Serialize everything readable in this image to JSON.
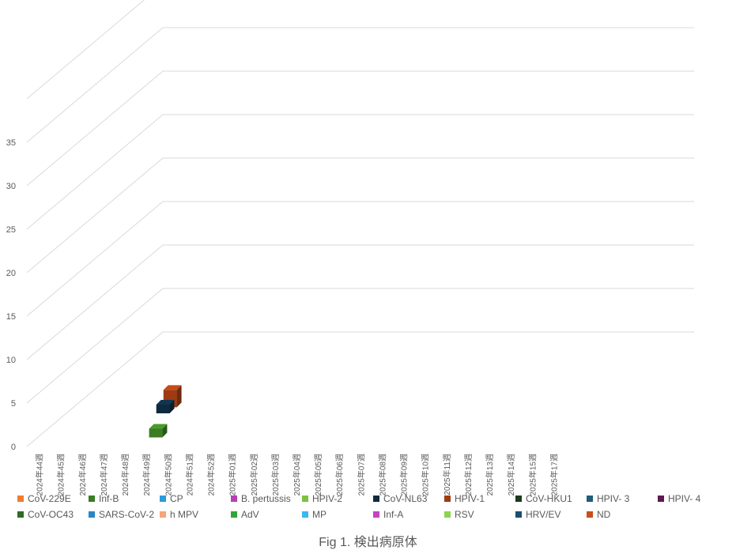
{
  "chart_data": {
    "type": "bar",
    "title": "",
    "xlabel": "",
    "ylabel": "",
    "ylim": [
      0,
      35
    ],
    "yticks": [
      0,
      5,
      10,
      15,
      20,
      25,
      30,
      35
    ],
    "categories": [
      "2024年44週",
      "2024年45週",
      "2024年46週",
      "2024年47週",
      "2024年48週",
      "2024年49週",
      "2024年50週",
      "2024年51週",
      "2024年52週",
      "2025年01週",
      "2025年02週",
      "2025年03週",
      "2025年04週",
      "2025年05週",
      "2025年06週",
      "2025年07週",
      "2025年08週",
      "2025年09週",
      "2025年10週",
      "2025年11週",
      "2025年12週",
      "2025年13週",
      "2025年14週",
      "2025年15週",
      "2025年17週"
    ],
    "series": [
      {
        "name": "CoV-229E",
        "color": "#ED7D31",
        "values": [
          0,
          0,
          0,
          0,
          0,
          0,
          0,
          0,
          0,
          0,
          0,
          0,
          0,
          0,
          0,
          0,
          0,
          0,
          0,
          0,
          0,
          0,
          0,
          0,
          0
        ]
      },
      {
        "name": "Inf-B",
        "color": "#3A7D22",
        "values": [
          0,
          0,
          0,
          0,
          0,
          1,
          0,
          0,
          0,
          0,
          0,
          0,
          0,
          0,
          0,
          0,
          0,
          0,
          0,
          0,
          0,
          0,
          0,
          0,
          0
        ]
      },
      {
        "name": "CP",
        "color": "#2E9BD6",
        "values": [
          0,
          0,
          0,
          0,
          0,
          0,
          0,
          0,
          0,
          0,
          0,
          0,
          0,
          0,
          0,
          0,
          0,
          0,
          0,
          0,
          0,
          0,
          0,
          0,
          0
        ]
      },
      {
        "name": "B. pertussis",
        "color": "#B440B4",
        "values": [
          0,
          0,
          0,
          0,
          0,
          0,
          0,
          0,
          0,
          0,
          0,
          0,
          0,
          0,
          0,
          0,
          0,
          0,
          0,
          0,
          0,
          0,
          0,
          0,
          0
        ]
      },
      {
        "name": "HPIV-2",
        "color": "#7DC142",
        "values": [
          0,
          0,
          0,
          0,
          0,
          0,
          0,
          0,
          0,
          0,
          0,
          0,
          0,
          0,
          0,
          0,
          0,
          0,
          0,
          0,
          0,
          0,
          0,
          0,
          0
        ]
      },
      {
        "name": "CoV-NL63",
        "color": "#0E2A3F",
        "values": [
          0,
          0,
          0,
          0,
          1,
          0,
          0,
          0,
          0,
          0,
          0,
          0,
          0,
          0,
          0,
          0,
          0,
          0,
          0,
          0,
          0,
          0,
          0,
          0,
          0
        ]
      },
      {
        "name": "HPIV-1",
        "color": "#9E3B12",
        "values": [
          0,
          0,
          0,
          0,
          2,
          0,
          0,
          0,
          0,
          0,
          0,
          0,
          0,
          0,
          0,
          0,
          0,
          0,
          0,
          0,
          0,
          0,
          0,
          0,
          0
        ]
      },
      {
        "name": "CoV-HKU1",
        "color": "#1D3A1D",
        "values": [
          0,
          0,
          0,
          0,
          0,
          0,
          0,
          0,
          0,
          0,
          0,
          0,
          0,
          0,
          0,
          0,
          0,
          0,
          0,
          0,
          0,
          0,
          0,
          0,
          0
        ]
      },
      {
        "name": "HPIV- 3",
        "color": "#1D5E7A",
        "values": [
          0,
          0,
          0,
          0,
          0,
          0,
          0,
          0,
          0,
          0,
          0,
          0,
          0,
          0,
          0,
          0,
          0,
          0,
          0,
          0,
          0,
          0,
          0,
          0,
          0
        ]
      },
      {
        "name": "HPIV- 4",
        "color": "#5E1A4E",
        "values": [
          0,
          0,
          0,
          0,
          0,
          0,
          0,
          0,
          0,
          0,
          0,
          0,
          0,
          0,
          0,
          0,
          0,
          0,
          0,
          0,
          0,
          0,
          0,
          0,
          0
        ]
      },
      {
        "name": "CoV-OC43",
        "color": "#2F6B23",
        "values": [
          0,
          0,
          0,
          0,
          0,
          0,
          0,
          0,
          0,
          0,
          0,
          0,
          0,
          0,
          0,
          0,
          0,
          0,
          0,
          0,
          0,
          0,
          0,
          0,
          0
        ]
      },
      {
        "name": "SARS-CoV-2",
        "color": "#2B86C5",
        "values": [
          0,
          0,
          0,
          0,
          0,
          0,
          0,
          0,
          0,
          0,
          0,
          0,
          0,
          0,
          0,
          0,
          0,
          0,
          0,
          0,
          0,
          0,
          0,
          0,
          0
        ]
      },
      {
        "name": "h MPV",
        "color": "#F4A57A",
        "values": [
          0,
          0,
          0,
          0,
          0,
          0,
          0,
          0,
          0,
          0,
          0,
          0,
          0,
          0,
          0,
          0,
          0,
          0,
          0,
          0,
          0,
          0,
          0,
          0,
          0
        ]
      },
      {
        "name": "AdV",
        "color": "#33A33A",
        "values": [
          0,
          0,
          0,
          0,
          0,
          0,
          0,
          0,
          0,
          0,
          0,
          0,
          0,
          0,
          0,
          0,
          0,
          0,
          0,
          0,
          0,
          0,
          0,
          0,
          0
        ]
      },
      {
        "name": "MP",
        "color": "#39B9EF",
        "values": [
          0,
          0,
          0,
          0,
          0,
          0,
          0,
          0,
          0,
          0,
          0,
          0,
          0,
          0,
          0,
          0,
          0,
          0,
          0,
          0,
          0,
          0,
          0,
          0,
          0
        ]
      },
      {
        "name": "Inf-A",
        "color": "#C443C4",
        "values": [
          0,
          0,
          0,
          0,
          0,
          0,
          0,
          0,
          0,
          0,
          0,
          0,
          0,
          0,
          0,
          0,
          0,
          0,
          0,
          0,
          0,
          0,
          0,
          0,
          0
        ]
      },
      {
        "name": "RSV",
        "color": "#8CD44E",
        "values": [
          0,
          0,
          0,
          0,
          0,
          0,
          0,
          0,
          0,
          0,
          0,
          0,
          0,
          0,
          0,
          0,
          0,
          0,
          0,
          0,
          0,
          0,
          0,
          0,
          0
        ]
      },
      {
        "name": "HRV/EV",
        "color": "#1A4F6E",
        "values": [
          0,
          0,
          0,
          0,
          0,
          0,
          0,
          0,
          0,
          0,
          0,
          0,
          0,
          0,
          0,
          0,
          0,
          0,
          0,
          0,
          0,
          0,
          0,
          0,
          0
        ]
      },
      {
        "name": "ND",
        "color": "#C5521C",
        "values": [
          0,
          0,
          0,
          0,
          0,
          0,
          0,
          0,
          0,
          0,
          0,
          0,
          0,
          0,
          0,
          0,
          0,
          0,
          0,
          0,
          0,
          0,
          0,
          0,
          0
        ]
      }
    ]
  },
  "caption": "Fig 1. 検出病原体"
}
